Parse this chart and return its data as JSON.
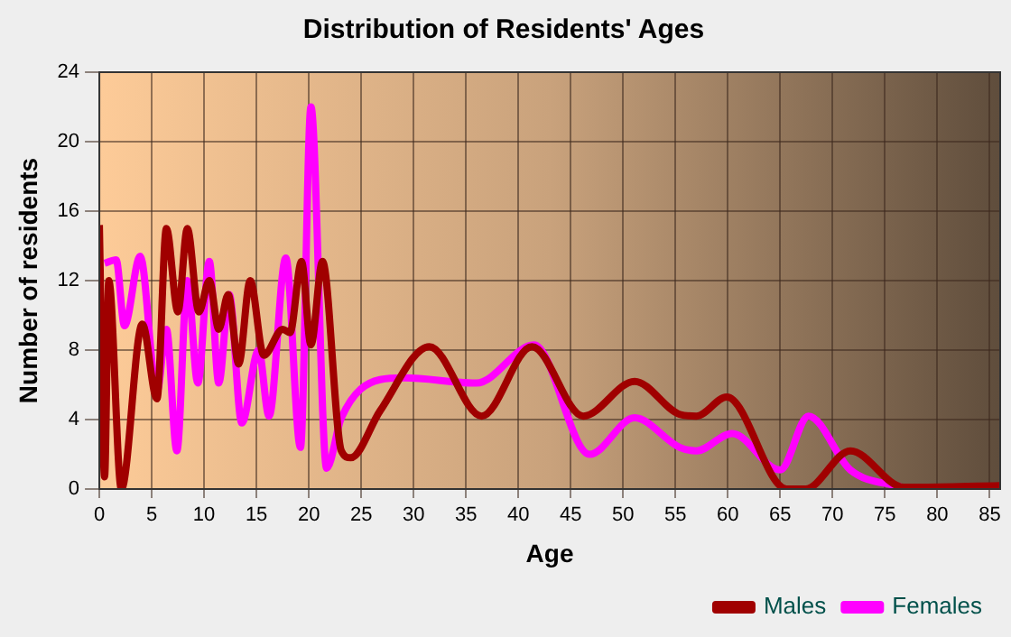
{
  "chart_data": {
    "type": "line",
    "title": "Distribution of Residents' Ages",
    "xlabel": "Age",
    "ylabel": "Number of residents",
    "xlim": [
      0,
      86
    ],
    "xticks": [
      0,
      5,
      10,
      15,
      20,
      25,
      30,
      35,
      40,
      45,
      50,
      55,
      60,
      65,
      70,
      75,
      80,
      85
    ],
    "ylim": [
      0,
      24
    ],
    "yticks": [
      0,
      4,
      8,
      12,
      16,
      20,
      24
    ],
    "grid": true,
    "legend": "bottom right",
    "marker": "none",
    "series": [
      {
        "name": "Males",
        "color": "#a00000",
        "x": [
          0,
          0.5,
          0.9,
          2.1,
          4.1,
          5.5,
          6.4,
          7.5,
          8.4,
          9.5,
          10.5,
          11.4,
          12.3,
          13.3,
          14.4,
          15.7,
          17.5,
          18.2,
          19.3,
          20.2,
          21.3,
          23.1,
          24,
          26.8,
          31.5,
          36.5,
          41.3,
          46.2,
          51.1,
          55.4,
          57,
          59.9,
          65.6,
          67.4,
          71.7,
          76.8,
          86
        ],
        "values": [
          15.2,
          0.7,
          12,
          0,
          9.5,
          5.2,
          15,
          10.2,
          15,
          10.2,
          12,
          9.2,
          11.2,
          7.2,
          12,
          7.7,
          9.2,
          9,
          13.1,
          8.3,
          13.1,
          2.2,
          1.8,
          4.5,
          8.2,
          4.2,
          8.2,
          4.2,
          6.2,
          4.3,
          4.2,
          5.3,
          0,
          0,
          2.2,
          0.1,
          0.2
        ]
      },
      {
        "name": "Females",
        "color": "#ff00ff",
        "x": [
          0.5,
          1.6,
          2.4,
          3.9,
          5.5,
          6.4,
          7.4,
          8.4,
          9.4,
          10.5,
          11.4,
          12.4,
          13.6,
          15.2,
          16.2,
          17.8,
          19.2,
          20.2,
          21.7,
          23.1,
          26.8,
          29.1,
          36,
          41.5,
          46.8,
          51.1,
          55.4,
          57,
          60.4,
          65,
          67.7,
          71.7,
          76.6
        ],
        "values": [
          13,
          13.2,
          9.4,
          13.4,
          5.6,
          9.2,
          2.2,
          12,
          6.1,
          13.1,
          6.1,
          11.2,
          3.8,
          8,
          4.2,
          13.3,
          2.4,
          22,
          1.2,
          4.1,
          6.3,
          6.4,
          6.1,
          8.3,
          2,
          4.1,
          2.4,
          2.2,
          3.2,
          1.1,
          4.2,
          1.1,
          0.1
        ]
      }
    ]
  }
}
